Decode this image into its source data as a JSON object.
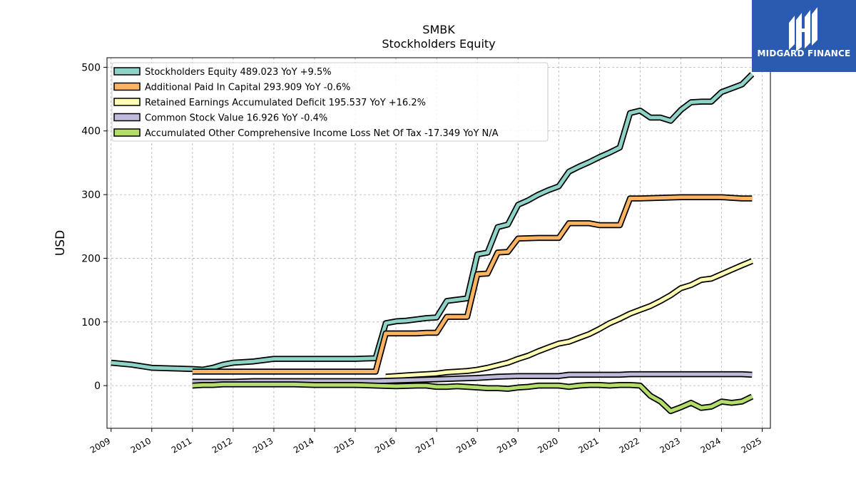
{
  "chart_data": {
    "type": "line",
    "title": "SMBK",
    "subtitle": "Stockholders  Equity",
    "ylabel": "USD",
    "xlabel": "",
    "ylim": [
      -67,
      515
    ],
    "xlim": [
      2008.9,
      2025.2
    ],
    "yticks": [
      0,
      100,
      200,
      300,
      400,
      500
    ],
    "xticks": [
      "2009",
      "2010",
      "2011",
      "2012",
      "2013",
      "2014",
      "2015",
      "2016",
      "2017",
      "2018",
      "2019",
      "2020",
      "2021",
      "2022",
      "2023",
      "2024",
      "2025"
    ],
    "grid": true,
    "legend_position": "top-left",
    "series": [
      {
        "name": "Stockholders Equity  489.023 YoY +9.5%",
        "color": "#8dd3c7",
        "x": [
          2009.0,
          2009.5,
          2010.0,
          2010.5,
          2011.0,
          2011.25,
          2011.5,
          2011.75,
          2012.0,
          2012.5,
          2012.75,
          2013.0,
          2013.25,
          2013.5,
          2014.0,
          2014.5,
          2015.0,
          2015.5,
          2015.75,
          2016.0,
          2016.25,
          2016.5,
          2016.75,
          2017.0,
          2017.25,
          2017.5,
          2017.75,
          2018.0,
          2018.25,
          2018.5,
          2018.75,
          2019.0,
          2019.25,
          2019.5,
          2019.75,
          2020.0,
          2020.25,
          2020.5,
          2020.75,
          2021.0,
          2021.25,
          2021.5,
          2021.75,
          2022.0,
          2022.25,
          2022.5,
          2022.75,
          2023.0,
          2023.25,
          2023.5,
          2023.75,
          2024.0,
          2024.25,
          2024.5,
          2024.75
        ],
        "y": [
          36,
          33,
          28,
          27,
          26,
          25,
          28,
          33,
          36,
          38,
          40,
          42,
          42,
          42,
          42,
          42,
          42,
          43,
          98,
          101,
          102,
          104,
          106,
          107,
          133,
          135,
          137,
          206,
          209,
          249,
          253,
          284,
          291,
          300,
          307,
          313,
          336,
          344,
          351,
          359,
          366,
          374,
          428,
          432,
          421,
          421,
          416,
          433,
          445,
          446,
          446,
          461,
          467,
          473,
          489
        ]
      },
      {
        "name": "Additional Paid In Capital  293.909 YoY -0.6%",
        "color": "#fdb462",
        "x": [
          2011.0,
          2011.5,
          2012.0,
          2012.5,
          2013.0,
          2013.5,
          2014.0,
          2014.5,
          2015.0,
          2015.5,
          2015.75,
          2016.0,
          2016.25,
          2016.5,
          2016.75,
          2017.0,
          2017.25,
          2017.5,
          2017.75,
          2018.0,
          2018.25,
          2018.5,
          2018.75,
          2019.0,
          2019.5,
          2020.0,
          2020.25,
          2020.5,
          2020.75,
          2021.0,
          2021.25,
          2021.5,
          2021.75,
          2022.0,
          2022.5,
          2023.0,
          2023.5,
          2024.0,
          2024.25,
          2024.5,
          2024.75
        ],
        "y": [
          22,
          22,
          22,
          22,
          22,
          22,
          22,
          22,
          22,
          22,
          82,
          82,
          82,
          82,
          83,
          83,
          108,
          108,
          108,
          175,
          176,
          209,
          210,
          231,
          232,
          232,
          255,
          255,
          255,
          252,
          252,
          252,
          294,
          294,
          295,
          296,
          296,
          296,
          295,
          294,
          294
        ]
      },
      {
        "name": "Retained Earnings Accumulated Deficit  195.537 YoY +16.2%",
        "color": "#ffffb3",
        "x": [
          2015.75,
          2016.0,
          2016.25,
          2016.5,
          2016.75,
          2017.0,
          2017.25,
          2017.5,
          2017.75,
          2018.0,
          2018.25,
          2018.5,
          2018.75,
          2019.0,
          2019.25,
          2019.5,
          2019.75,
          2020.0,
          2020.25,
          2020.5,
          2020.75,
          2021.0,
          2021.25,
          2021.5,
          2021.75,
          2022.0,
          2022.25,
          2022.5,
          2022.75,
          2023.0,
          2023.25,
          2023.5,
          2023.75,
          2024.0,
          2024.25,
          2024.5,
          2024.75
        ],
        "y": [
          14,
          15,
          16,
          17,
          18,
          19,
          21,
          22,
          23,
          25,
          28,
          32,
          36,
          42,
          47,
          54,
          60,
          66,
          69,
          75,
          81,
          89,
          98,
          105,
          113,
          119,
          125,
          133,
          142,
          153,
          158,
          166,
          168,
          175,
          182,
          189,
          195.537
        ]
      },
      {
        "name": "Common Stock Value  16.926 YoY -0.4%",
        "color": "#bebada",
        "x": [
          2011.0,
          2011.5,
          2012.0,
          2012.5,
          2013.0,
          2013.5,
          2014.0,
          2014.5,
          2015.0,
          2015.5,
          2016.0,
          2016.5,
          2017.0,
          2017.5,
          2018.0,
          2018.5,
          2019.0,
          2019.5,
          2020.0,
          2020.25,
          2020.5,
          2021.0,
          2021.5,
          2021.75,
          2022.0,
          2022.5,
          2023.0,
          2023.5,
          2024.0,
          2024.5,
          2024.75
        ],
        "y": [
          6,
          6,
          6,
          7,
          7,
          7,
          7,
          7,
          7,
          7,
          8,
          9,
          10,
          11,
          12,
          14,
          15,
          15,
          15,
          17,
          17,
          17,
          17,
          18,
          18,
          18,
          18,
          18,
          18,
          18,
          17
        ]
      },
      {
        "name": "Accumulated Other Comprehensive Income Loss Net Of Tax  -17.349 YoY N/A",
        "color": "#b3de69",
        "x": [
          2011.0,
          2011.25,
          2011.5,
          2011.75,
          2012.0,
          2012.5,
          2013.0,
          2013.25,
          2013.5,
          2014.0,
          2014.5,
          2015.0,
          2015.5,
          2016.0,
          2016.5,
          2016.75,
          2017.0,
          2017.25,
          2017.5,
          2017.75,
          2018.0,
          2018.25,
          2018.5,
          2018.75,
          2019.0,
          2019.25,
          2019.5,
          2019.75,
          2020.0,
          2020.25,
          2020.5,
          2020.75,
          2021.0,
          2021.25,
          2021.5,
          2021.75,
          2022.0,
          2022.25,
          2022.5,
          2022.75,
          2023.0,
          2023.25,
          2023.5,
          2023.75,
          2024.0,
          2024.25,
          2024.5,
          2024.75
        ],
        "y": [
          0,
          1,
          1,
          2,
          2,
          2,
          2,
          2,
          2,
          1,
          1,
          1,
          0,
          -1,
          0,
          0,
          -2,
          -2,
          -1,
          -2,
          -3,
          -4,
          -4,
          -5,
          -3,
          -2,
          0,
          0,
          0,
          -2,
          0,
          1,
          1,
          0,
          1,
          1,
          0,
          -16,
          -25,
          -40,
          -34,
          -27,
          -35,
          -33,
          -25,
          -27,
          -25,
          -17.349
        ]
      }
    ]
  },
  "branding": {
    "logo_text": "MIDGARD FINANCE",
    "logo_color": "#2a5bb0"
  }
}
